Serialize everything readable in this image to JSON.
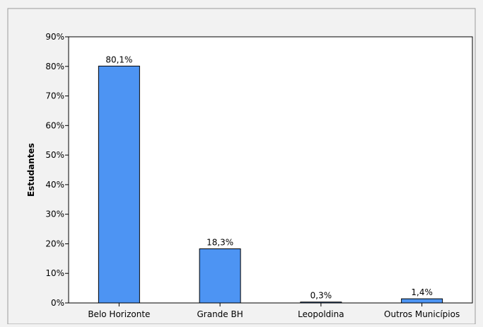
{
  "chart_data": {
    "type": "bar",
    "title": "",
    "xlabel": "",
    "ylabel": "Estudantes",
    "categories": [
      "Belo Horizonte",
      "Grande BH",
      "Leopoldina",
      "Outros Municípios"
    ],
    "values": [
      80.1,
      18.3,
      0.3,
      1.4
    ],
    "value_labels": [
      "80,1%",
      "18,3%",
      "0,3%",
      "1,4%"
    ],
    "ylim": [
      0,
      90
    ],
    "yticks": [
      0,
      10,
      20,
      30,
      40,
      50,
      60,
      70,
      80,
      90
    ],
    "ytick_labels": [
      "0%",
      "10%",
      "20%",
      "30%",
      "40%",
      "50%",
      "60%",
      "70%",
      "80%",
      "90%"
    ],
    "grid": false,
    "legend": "none",
    "bar_color": "#4d94f3",
    "plot_background": "#ffffff",
    "page_background": "#f2f2f2"
  }
}
